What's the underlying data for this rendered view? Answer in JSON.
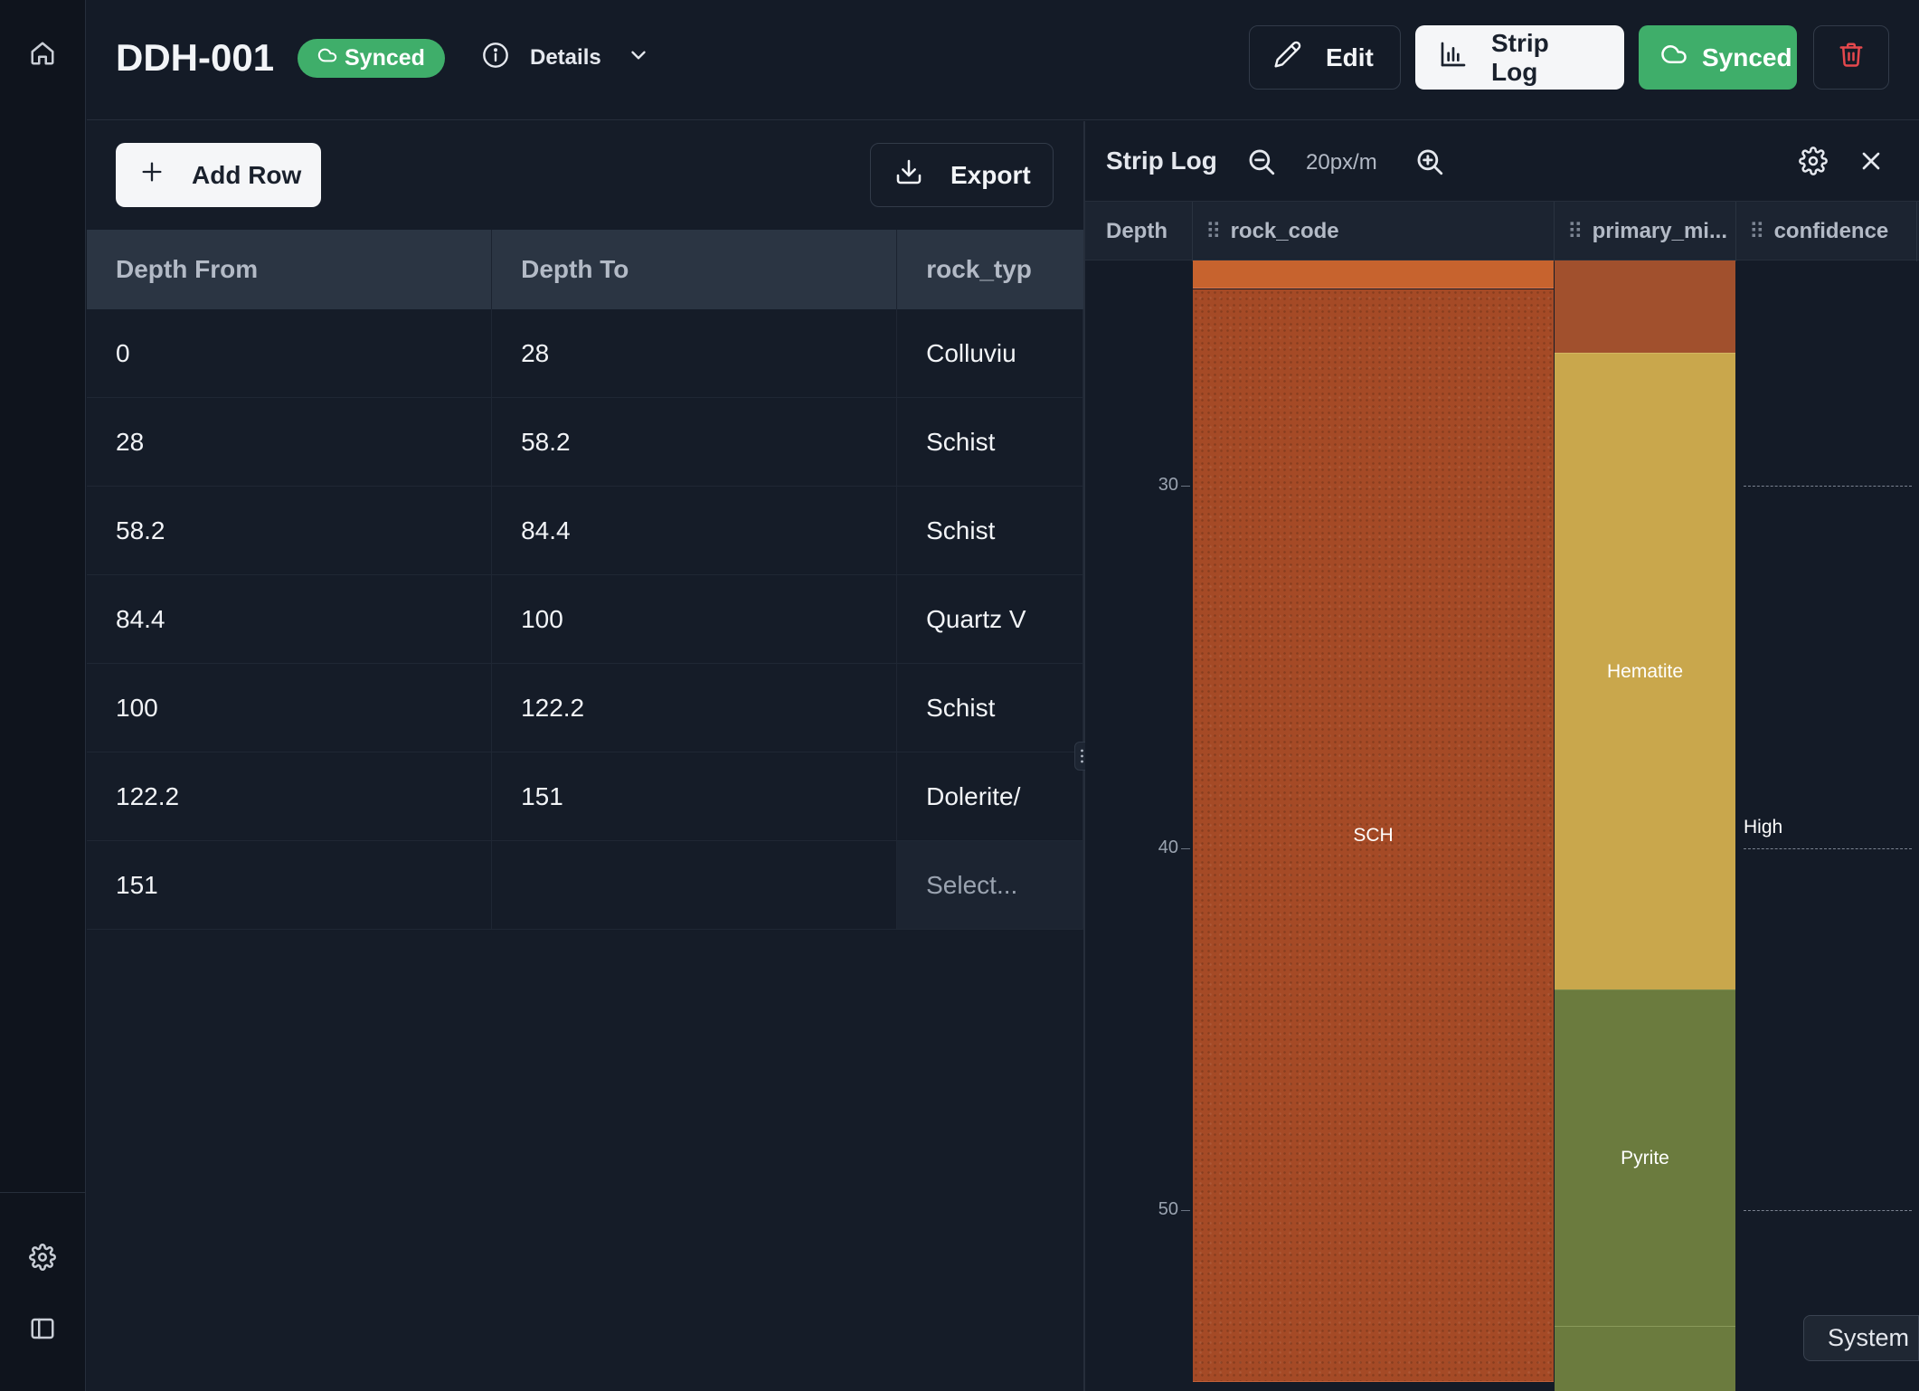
{
  "header": {
    "title": "DDH-001",
    "status_badge": "Synced",
    "details_label": "Details",
    "edit_label": "Edit",
    "strip_log_label": "Strip Log",
    "synced_label": "Synced"
  },
  "toolbar": {
    "add_row_label": "Add Row",
    "export_label": "Export"
  },
  "table": {
    "columns": [
      "Depth From",
      "Depth To",
      "rock_typ"
    ],
    "rows": [
      {
        "from": "0",
        "to": "28",
        "rock": "Colluviu"
      },
      {
        "from": "28",
        "to": "58.2",
        "rock": "Schist"
      },
      {
        "from": "58.2",
        "to": "84.4",
        "rock": "Schist"
      },
      {
        "from": "84.4",
        "to": "100",
        "rock": "Quartz V"
      },
      {
        "from": "100",
        "to": "122.2",
        "rock": "Schist"
      },
      {
        "from": "122.2",
        "to": "151",
        "rock": "Dolerite/"
      },
      {
        "from": "151",
        "to": "",
        "rock": "Select..."
      }
    ]
  },
  "strip_log": {
    "title": "Strip Log",
    "zoom_label": "20px/m",
    "columns": {
      "depth": "Depth",
      "rock_code": "rock_code",
      "primary_mineral": "primary_mi...",
      "confidence": "confidence"
    },
    "depth_ticks": [
      "30",
      "40",
      "50"
    ],
    "rock_intervals": [
      {
        "label": "",
        "color": "#c7632e"
      },
      {
        "label": "SCH",
        "color": "#a54a26"
      }
    ],
    "mineral_intervals": [
      {
        "label": "",
        "color": "#a1502d"
      },
      {
        "label": "Hematite",
        "color": "#c9a74c"
      },
      {
        "label": "Pyrite",
        "color": "#6b7b3e"
      },
      {
        "label": "",
        "color": "#6b7b3e"
      }
    ],
    "confidence_label": "High"
  },
  "system_label": "System",
  "colors": {
    "accent_green": "#3fae6a",
    "danger_red": "#e5484d",
    "background": "#141b27"
  },
  "icons": {
    "sidebar": [
      "home-icon",
      "settings-icon",
      "sidebar-toggle-icon"
    ],
    "header": [
      "cloud-icon",
      "info-icon",
      "chevron-down-icon",
      "pencil-icon",
      "bar-chart-icon",
      "trash-icon"
    ]
  }
}
